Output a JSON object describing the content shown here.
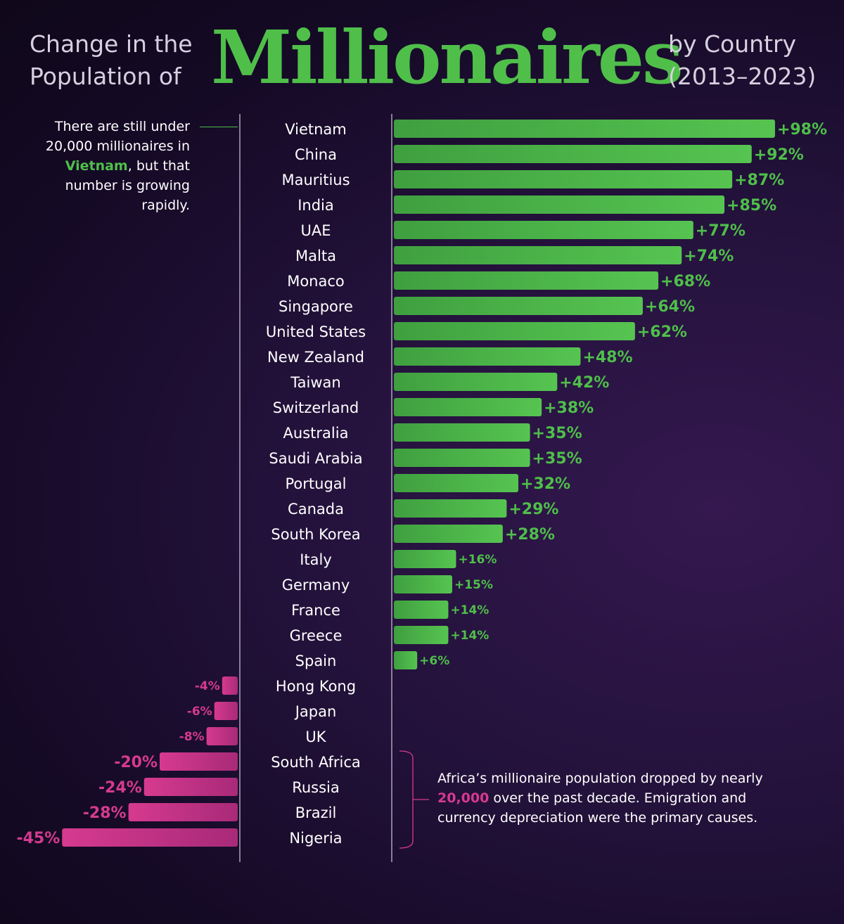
{
  "header": {
    "left_line1": "Change in the",
    "left_line2": "Population of",
    "main": "Millionaires",
    "right_line1": "by Country",
    "right_line2": "(2013–2023)"
  },
  "notes": {
    "top_part1": "There are still under 20,000 millionaires in ",
    "top_highlight": "Vietnam",
    "top_part2": ", but that number is growing rapidly.",
    "bottom_part1": "Africa’s millionaire population dropped by nearly ",
    "bottom_highlight": "20,000",
    "bottom_part2": " over the past decade. Emigration and currency depreciation were the primary causes."
  },
  "colors": {
    "positive": "#4fbf4a",
    "negative": "#d63a8f",
    "axis": "#cfc8da",
    "background": "#24123c"
  },
  "chart_data": {
    "type": "bar",
    "orientation": "horizontal",
    "unit": "%",
    "categories": [
      "Vietnam",
      "China",
      "Mauritius",
      "India",
      "UAE",
      "Malta",
      "Monaco",
      "Singapore",
      "United States",
      "New Zealand",
      "Taiwan",
      "Switzerland",
      "Australia",
      "Saudi Arabia",
      "Portugal",
      "Canada",
      "South Korea",
      "Italy",
      "Germany",
      "France",
      "Greece",
      "Spain",
      "Hong Kong",
      "Japan",
      "UK",
      "South Africa",
      "Russia",
      "Brazil",
      "Nigeria"
    ],
    "values": [
      98,
      92,
      87,
      85,
      77,
      74,
      68,
      64,
      62,
      48,
      42,
      38,
      35,
      35,
      32,
      29,
      28,
      16,
      15,
      14,
      14,
      6,
      -4,
      -6,
      -8,
      -20,
      -24,
      -28,
      -45
    ],
    "labels": [
      "+98%",
      "+92%",
      "+87%",
      "+85%",
      "+77%",
      "+74%",
      "+68%",
      "+64%",
      "+62%",
      "+48%",
      "+42%",
      "+38%",
      "+35%",
      "+35%",
      "+32%",
      "+29%",
      "+28%",
      "+16%",
      "+15%",
      "+14%",
      "+14%",
      "+6%",
      "-4%",
      "-6%",
      "-8%",
      "-20%",
      "-24%",
      "-28%",
      "-45%"
    ]
  }
}
